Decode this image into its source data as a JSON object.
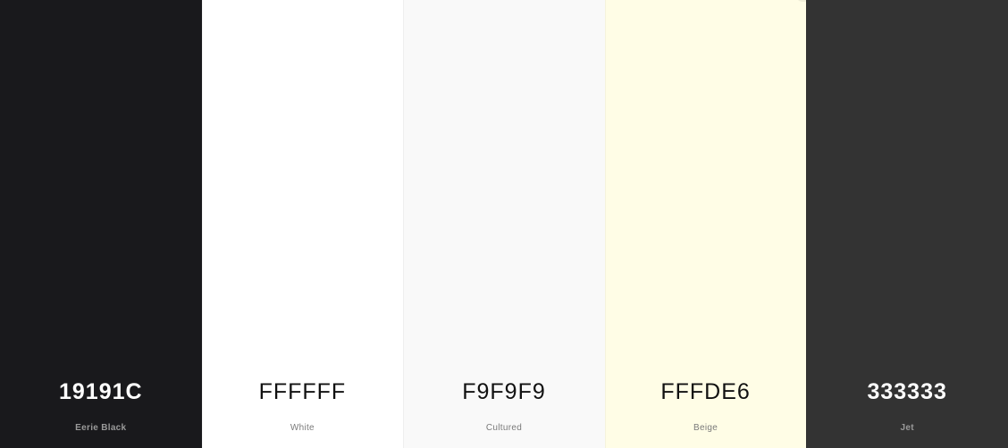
{
  "palette": {
    "swatches": [
      {
        "hex": "19191C",
        "name": "Eerie Black",
        "color": "#19191C",
        "tone": "dark"
      },
      {
        "hex": "FFFFFF",
        "name": "White",
        "color": "#FFFFFF",
        "tone": "light"
      },
      {
        "hex": "F9F9F9",
        "name": "Cultured",
        "color": "#F9F9F9",
        "tone": "light"
      },
      {
        "hex": "FFFDE6",
        "name": "Beige",
        "color": "#FFFDE6",
        "tone": "light"
      },
      {
        "hex": "333333",
        "name": "Jet",
        "color": "#333333",
        "tone": "dark"
      }
    ]
  }
}
